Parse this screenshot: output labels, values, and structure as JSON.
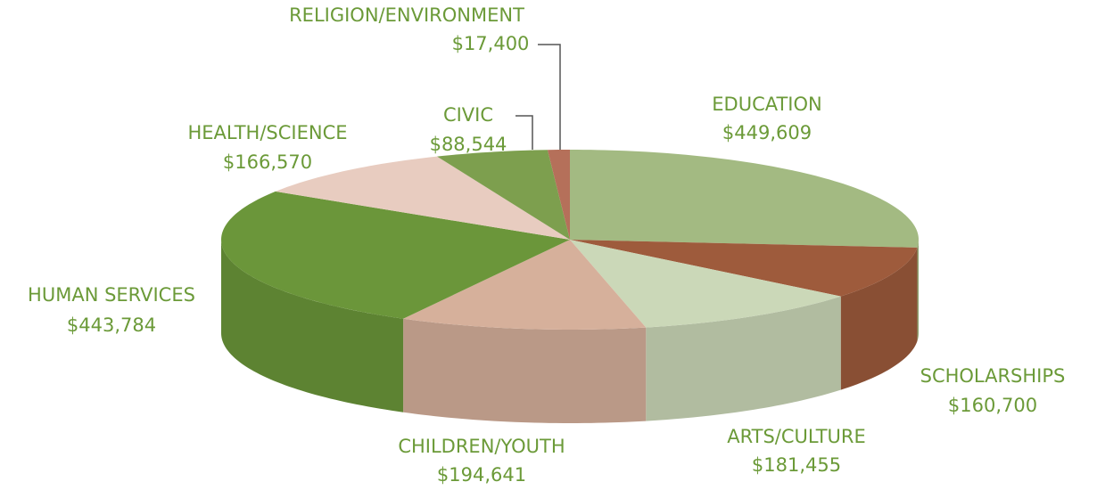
{
  "chart_data": {
    "type": "pie",
    "categories": [
      "EDUCATION",
      "SCHOLARSHIPS",
      "ARTS/CULTURE",
      "CHILDREN/YOUTH",
      "HUMAN SERVICES",
      "HEALTH/SCIENCE",
      "CIVIC",
      "RELIGION/ENVIRONMENT"
    ],
    "values": [
      449609,
      160700,
      181455,
      194641,
      443784,
      166570,
      88544,
      17400
    ],
    "value_labels": [
      "$449,609",
      "$160,700",
      "$181,455",
      "$194,641",
      "$443,784",
      "$166,570",
      "$88,544",
      "$17,400"
    ],
    "colors": [
      "#a3ba82",
      "#9e5b3c",
      "#cbd8b8",
      "#d6b09b",
      "#6b963a",
      "#e8ccc0",
      "#7d9f4e",
      "#b5705a"
    ]
  }
}
